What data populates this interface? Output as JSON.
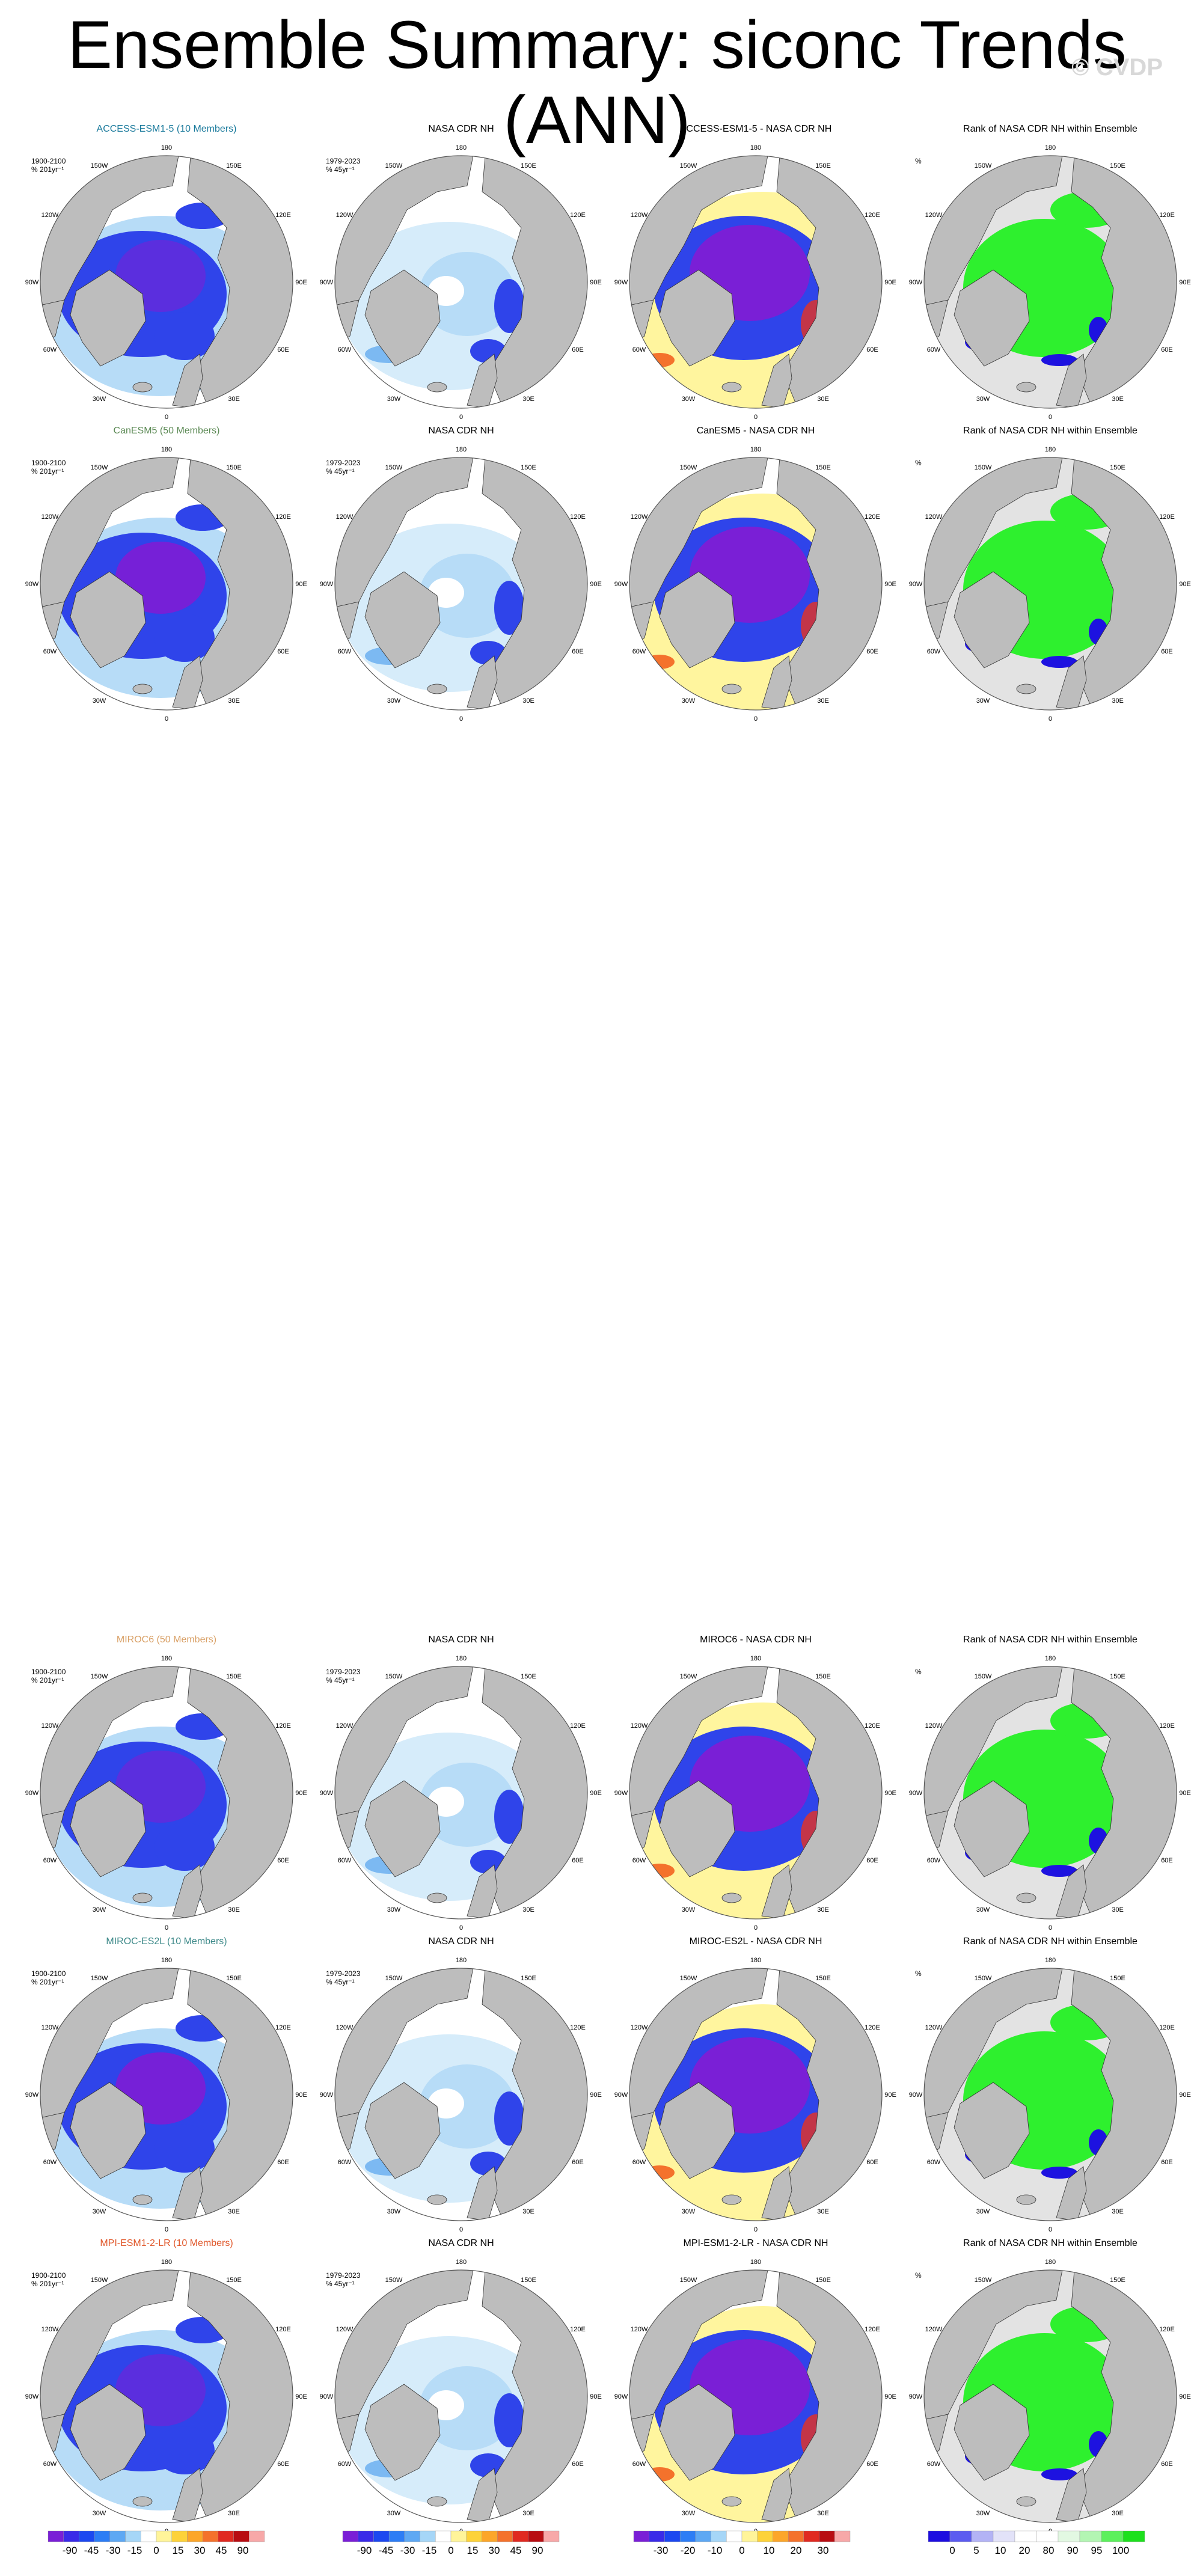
{
  "figure": {
    "title": "Ensemble Summary: siconc Trends (ANN)",
    "watermark": "© CVDP"
  },
  "chart_data": {
    "type": "map",
    "projection": "north polar stereographic",
    "variable": "siconc",
    "season": "ANN",
    "observation": "NASA CDR NH",
    "longitude_labels": [
      "180",
      "150E",
      "120E",
      "90E",
      "60E",
      "30E",
      "0",
      "30W",
      "60W",
      "90W",
      "120W",
      "150W"
    ],
    "rows": [
      {
        "model": "ACCESS-ESM1-5 (10 Members)",
        "model_color": "#1a7a9c",
        "ensemble_period": "1900-2100",
        "ensemble_units": "% 201yr⁻¹",
        "obs_title": "NASA CDR NH",
        "obs_period": "1979-2023",
        "obs_units": "% 45yr⁻¹",
        "diff_title": "ACCESS-ESM1-5 - NASA CDR NH",
        "rank_title": "Rank of NASA CDR NH within Ensemble",
        "rank_units": "%"
      },
      {
        "model": "CanESM5 (50 Members)",
        "model_color": "#5c8a55",
        "ensemble_period": "1900-2100",
        "ensemble_units": "% 201yr⁻¹",
        "obs_title": "NASA CDR NH",
        "obs_period": "1979-2023",
        "obs_units": "% 45yr⁻¹",
        "diff_title": "CanESM5 - NASA CDR NH",
        "rank_title": "Rank of NASA CDR NH within Ensemble",
        "rank_units": "%"
      },
      {
        "model": "MIROC6 (50 Members)",
        "model_color": "#d9a066",
        "ensemble_period": "1900-2100",
        "ensemble_units": "% 201yr⁻¹",
        "obs_title": "NASA CDR NH",
        "obs_period": "1979-2023",
        "obs_units": "% 45yr⁻¹",
        "diff_title": "MIROC6 - NASA CDR NH",
        "rank_title": "Rank of NASA CDR NH within Ensemble",
        "rank_units": "%"
      },
      {
        "model": "MIROC-ES2L (10 Members)",
        "model_color": "#3e8a8a",
        "ensemble_period": "1900-2100",
        "ensemble_units": "% 201yr⁻¹",
        "obs_title": "NASA CDR NH",
        "obs_period": "1979-2023",
        "obs_units": "% 45yr⁻¹",
        "diff_title": "MIROC-ES2L - NASA CDR NH",
        "rank_title": "Rank of NASA CDR NH within Ensemble",
        "rank_units": "%"
      },
      {
        "model": "MPI-ESM1-2-LR (10 Members)",
        "model_color": "#e0572a",
        "ensemble_period": "1900-2100",
        "ensemble_units": "% 201yr⁻¹",
        "obs_title": "NASA CDR NH",
        "obs_period": "1979-2023",
        "obs_units": "% 45yr⁻¹",
        "diff_title": "MPI-ESM1-2-LR - NASA CDR NH",
        "rank_title": "Rank of NASA CDR NH within Ensemble",
        "rank_units": "%"
      }
    ],
    "colorbars": [
      {
        "name": "trend",
        "labels": [
          "-90",
          "-45",
          "-30",
          "-15",
          "0",
          "15",
          "30",
          "45",
          "90"
        ],
        "colors": [
          "#7a1fd6",
          "#3a2be8",
          "#1c48f0",
          "#2d7df5",
          "#5ea8f3",
          "#a6d6f7",
          "#ffffff",
          "#fff49a",
          "#fdd23a",
          "#fca62a",
          "#f4722c",
          "#e02a21",
          "#b80d12",
          "#f7a8a8"
        ]
      },
      {
        "name": "trend",
        "labels": [
          "-90",
          "-45",
          "-30",
          "-15",
          "0",
          "15",
          "30",
          "45",
          "90"
        ],
        "colors": [
          "#7a1fd6",
          "#3a2be8",
          "#1c48f0",
          "#2d7df5",
          "#5ea8f3",
          "#a6d6f7",
          "#ffffff",
          "#fff49a",
          "#fdd23a",
          "#fca62a",
          "#f4722c",
          "#e02a21",
          "#b80d12",
          "#f7a8a8"
        ]
      },
      {
        "name": "difference",
        "labels": [
          "-30",
          "-20",
          "-10",
          "0",
          "10",
          "20",
          "30"
        ],
        "colors": [
          "#7a1fd6",
          "#3a2be8",
          "#1c48f0",
          "#2d7df5",
          "#5ea8f3",
          "#a6d6f7",
          "#ffffff",
          "#fff49a",
          "#fdd23a",
          "#fca62a",
          "#f4722c",
          "#e02a21",
          "#b80d12",
          "#f7a8a8"
        ]
      },
      {
        "name": "rank",
        "labels": [
          "0",
          "5",
          "10",
          "20",
          "80",
          "90",
          "95",
          "100"
        ],
        "colors": [
          "#1d0ee0",
          "#5c5cf0",
          "#b3b3f5",
          "#e2e2f8",
          "#ffffff",
          "#ffffff",
          "#e2f8e2",
          "#b3f5b3",
          "#5cf05c",
          "#1de01d"
        ]
      }
    ],
    "palette": {
      "land": "#bdbdbd",
      "ocean": "#ffffff",
      "rank_background": "#e3e3e3",
      "strong_decline": "#7a1fd6",
      "decline": "#2f44ea",
      "weak_decline": "#b7dcf7",
      "increase": "#fff59e",
      "strong_increase": "#e8321f",
      "rank_inside": "#2ef02e",
      "rank_low": "#1d12e0"
    }
  }
}
